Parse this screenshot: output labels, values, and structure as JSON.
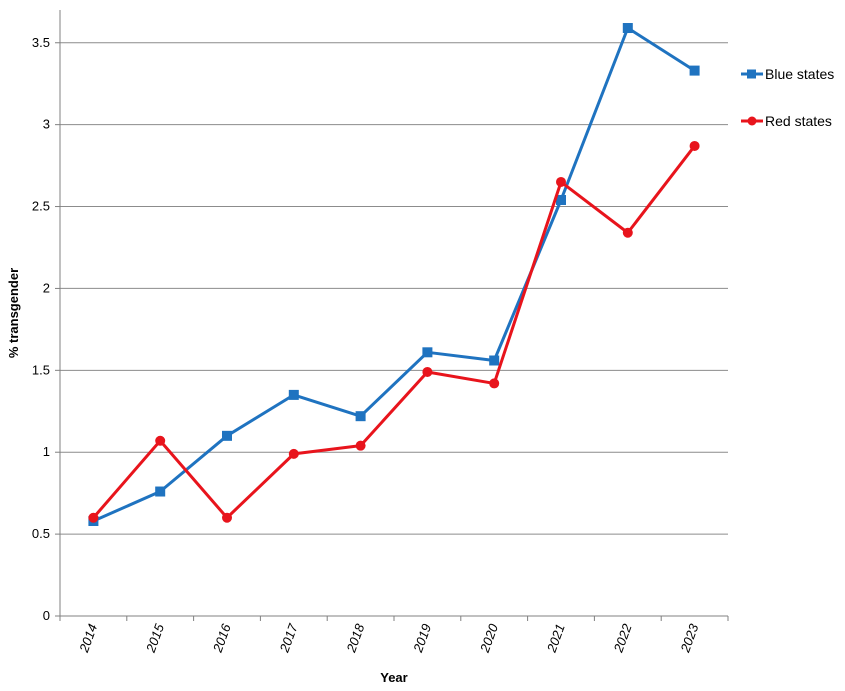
{
  "chart_data": {
    "type": "line",
    "title": "",
    "xlabel": "Year",
    "ylabel": "% transgender",
    "categories": [
      "2014",
      "2015",
      "2016",
      "2017",
      "2018",
      "2019",
      "2020",
      "2021",
      "2022",
      "2023"
    ],
    "ylim": [
      0,
      3.7
    ],
    "yticks": [
      0,
      0.5,
      1,
      1.5,
      2,
      2.5,
      3,
      3.5
    ],
    "ytick_labels": [
      "0",
      "0.5",
      "1",
      "1.5",
      "2",
      "2.5",
      "3",
      "3.5"
    ],
    "grid": "horizontal",
    "legend_position": "right",
    "series": [
      {
        "name": "Blue states",
        "color": "#1f73c0",
        "marker": "square",
        "values": [
          0.58,
          0.76,
          1.1,
          1.35,
          1.22,
          1.61,
          1.56,
          2.54,
          3.59,
          3.33
        ]
      },
      {
        "name": "Red states",
        "color": "#e8141c",
        "marker": "circle",
        "values": [
          0.6,
          1.07,
          0.6,
          0.99,
          1.04,
          1.49,
          1.42,
          2.65,
          2.34,
          2.87
        ]
      }
    ]
  }
}
